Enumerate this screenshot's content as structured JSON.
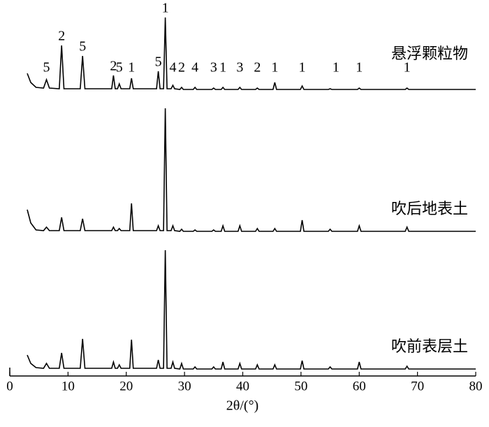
{
  "chart_data": {
    "type": "line",
    "x_label": "2θ/(°)",
    "xlim": [
      0,
      80
    ],
    "xticks": [
      0,
      10,
      20,
      30,
      40,
      50,
      60,
      70,
      80
    ],
    "x": [
      3,
      3.6,
      4.5,
      5.8,
      6.3,
      6.8,
      8.5,
      8.9,
      9.3,
      12.1,
      12.5,
      12.9,
      17.5,
      17.8,
      18.1,
      18.5,
      18.8,
      19.1,
      20.6,
      20.9,
      21.2,
      25.2,
      25.5,
      25.8,
      26.4,
      26.7,
      27.0,
      27.7,
      28.0,
      28.3,
      29.2,
      29.5,
      29.8,
      31.5,
      31.8,
      32.1,
      34.7,
      35.0,
      35.3,
      36.3,
      36.6,
      36.9,
      39.2,
      39.5,
      39.8,
      42.2,
      42.5,
      42.8,
      45.2,
      45.5,
      45.8,
      49.9,
      50.2,
      50.5,
      54.7,
      55.0,
      55.3,
      59.7,
      60.0,
      60.3,
      67.9,
      68.2,
      68.5,
      80
    ],
    "series": [
      {
        "name": "悬浮颗粒物",
        "color": "#000000",
        "values": [
          25,
          12,
          5,
          4,
          16,
          4,
          3,
          65,
          3,
          3,
          50,
          3,
          3,
          22,
          3,
          3,
          10,
          3,
          3,
          18,
          3,
          3,
          28,
          3,
          3,
          105,
          3,
          3,
          8,
          3,
          2,
          5,
          2,
          2,
          5,
          2,
          2,
          4,
          2,
          2,
          5,
          2,
          2,
          5,
          2,
          2,
          4,
          2,
          2,
          12,
          2,
          2,
          7,
          2,
          2,
          3,
          2,
          2,
          4,
          2,
          2,
          4,
          2,
          2
        ]
      },
      {
        "name": "吹后地表土",
        "color": "#000000",
        "values": [
          33,
          14,
          4,
          3,
          8,
          3,
          3,
          22,
          3,
          3,
          20,
          3,
          3,
          8,
          3,
          3,
          6,
          3,
          3,
          42,
          3,
          3,
          10,
          3,
          3,
          178,
          3,
          3,
          10,
          3,
          2,
          5,
          2,
          2,
          4,
          2,
          2,
          4,
          2,
          2,
          10,
          2,
          2,
          10,
          2,
          2,
          6,
          2,
          2,
          6,
          2,
          2,
          18,
          2,
          2,
          5,
          2,
          2,
          10,
          2,
          2,
          8,
          2,
          2
        ]
      },
      {
        "name": "吹前表层土",
        "color": "#000000",
        "values": [
          22,
          10,
          4,
          3,
          10,
          3,
          3,
          25,
          3,
          3,
          45,
          3,
          3,
          12,
          3,
          3,
          8,
          3,
          3,
          44,
          3,
          3,
          15,
          3,
          3,
          172,
          3,
          3,
          12,
          3,
          2,
          10,
          2,
          2,
          5,
          2,
          2,
          5,
          2,
          2,
          12,
          2,
          2,
          10,
          2,
          2,
          8,
          2,
          2,
          8,
          2,
          2,
          14,
          2,
          2,
          5,
          2,
          2,
          12,
          2,
          2,
          6,
          2,
          2
        ]
      }
    ],
    "annotations": [
      {
        "text": "5",
        "x": 6.3
      },
      {
        "text": "2",
        "x": 8.9
      },
      {
        "text": "5",
        "x": 12.5
      },
      {
        "text": "2",
        "x": 17.8
      },
      {
        "text": "5",
        "x": 18.8
      },
      {
        "text": "1",
        "x": 20.9
      },
      {
        "text": "5",
        "x": 25.5
      },
      {
        "text": "1",
        "x": 26.7
      },
      {
        "text": "4",
        "x": 28.0
      },
      {
        "text": "2",
        "x": 29.5
      },
      {
        "text": "4",
        "x": 31.8
      },
      {
        "text": "3",
        "x": 35.0
      },
      {
        "text": "1",
        "x": 36.6
      },
      {
        "text": "3",
        "x": 39.5
      },
      {
        "text": "2",
        "x": 42.5
      },
      {
        "text": "1",
        "x": 45.5
      },
      {
        "text": "1",
        "x": 50.2
      },
      {
        "text": "1",
        "x": 56.0
      },
      {
        "text": "1",
        "x": 60.0
      },
      {
        "text": "1",
        "x": 68.2
      }
    ]
  }
}
